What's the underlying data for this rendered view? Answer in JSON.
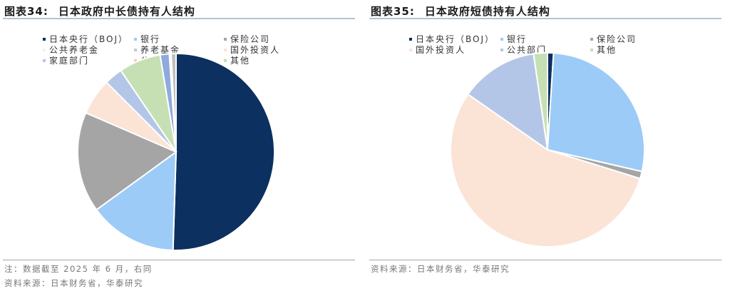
{
  "chart_data": [
    {
      "type": "pie",
      "figure_no": "图表34:",
      "title": "日本政府中长债持有人结构",
      "legend": [
        "日本央行（BOJ）",
        "银行",
        "保险公司",
        "公共养老金",
        "养老基金",
        "国外投资人",
        "家庭部门",
        "公共部门",
        "其他"
      ],
      "slices": [
        {
          "label": "日本央行（BOJ）",
          "value": 50.5,
          "color": "#0c305f"
        },
        {
          "label": "银行",
          "value": 14.5,
          "color": "#9ccbf7"
        },
        {
          "label": "保险公司",
          "value": 16.5,
          "color": "#a5a5a5"
        },
        {
          "label": "国外投资人",
          "value": 6.0,
          "color": "#fbe3d6"
        },
        {
          "label": "家庭部门",
          "value": 3.0,
          "color": "#b3c6e7"
        },
        {
          "label": "公共部门",
          "value": 6.9,
          "color": "#c6e0b4"
        },
        {
          "label": "公共养老金",
          "value": 1.5,
          "color": "#8faadc"
        },
        {
          "label": "养老基金",
          "value": 0.3,
          "color": "#ffffff"
        },
        {
          "label": "其他",
          "value": 0.8,
          "color": "#bfbfbf"
        }
      ],
      "note": "注：数据截至 2025 年 6 月，右同",
      "source": "资料来源：日本财务省，华泰研究"
    },
    {
      "type": "pie",
      "figure_no": "图表35:",
      "title": "日本政府短债持有人结构",
      "legend": [
        "日本央行（BOJ）",
        "银行",
        "保险公司",
        "国外投资人",
        "公共部门",
        "其他"
      ],
      "slices": [
        {
          "label": "日本央行（BOJ）",
          "value": 1.0,
          "color": "#0c305f"
        },
        {
          "label": "银行",
          "value": 27.6,
          "color": "#9ccbf7"
        },
        {
          "label": "保险公司",
          "value": 1.2,
          "color": "#a5a5a5"
        },
        {
          "label": "国外投资人",
          "value": 54.9,
          "color": "#fbe3d6"
        },
        {
          "label": "公共部门",
          "value": 13.0,
          "color": "#b3c6e7"
        },
        {
          "label": "其他",
          "value": 2.3,
          "color": "#c6e0b4"
        }
      ],
      "source": "资料来源：日本财务省，华泰研究"
    }
  ],
  "left": {
    "figure_no": "图表34:",
    "title": "日本政府中长债持有人结构",
    "legend": [
      {
        "label": "日本央行（BOJ）",
        "color": "#0c305f"
      },
      {
        "label": "银行",
        "color": "#9ccbf7"
      },
      {
        "label": "保险公司",
        "color": "#a5a5a5"
      },
      {
        "label": "公共养老金",
        "color": "#f2f2f2"
      },
      {
        "label": "养老基金",
        "color": "#c9c9c9"
      },
      {
        "label": "国外投资人",
        "color": "#fbe3d6"
      },
      {
        "label": "家庭部门",
        "color": "#b3c6e7"
      },
      {
        "label": "公共部门",
        "color": "#f8cbad"
      },
      {
        "label": "其他",
        "color": "#c6e0b4"
      }
    ],
    "note": "注：数据截至 2025 年 6 月，右同",
    "source": "资料来源：日本财务省，华泰研究"
  },
  "right": {
    "figure_no": "图表35:",
    "title": "日本政府短债持有人结构",
    "legend": [
      {
        "label": "日本央行（BOJ）",
        "color": "#0c305f"
      },
      {
        "label": "银行",
        "color": "#9ccbf7"
      },
      {
        "label": "保险公司",
        "color": "#a5a5a5"
      },
      {
        "label": "国外投资人",
        "color": "#fbe3d6"
      },
      {
        "label": "公共部门",
        "color": "#b3c6e7"
      },
      {
        "label": "其他",
        "color": "#c6e0b4"
      }
    ],
    "source": "资料来源：日本财务省，华泰研究"
  }
}
